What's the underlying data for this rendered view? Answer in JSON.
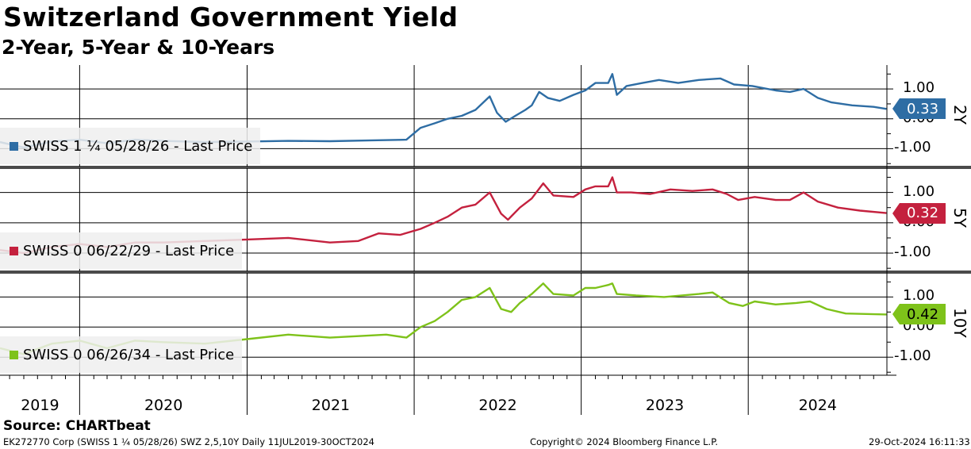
{
  "header": {
    "title": "Switzerland Government Yield",
    "subtitle": "2-Year, 5-Year & 10-Years"
  },
  "source": "Source: CHARTbeat",
  "footer": {
    "left": "EK272770 Corp (SWISS 1 ¼ 05/28/26) SWZ 2,5,10Y  Daily 11JUL2019-30OCT2024",
    "center": "Copyright© 2024 Bloomberg Finance L.P.",
    "right": "29-Oct-2024 16:11:33"
  },
  "chart_data": {
    "type": "line",
    "x_axis": {
      "start": "2019-07-11",
      "end": "2024-10-30",
      "year_labels": [
        "2019",
        "2020",
        "2021",
        "2022",
        "2023",
        "2024"
      ]
    },
    "panels": [
      {
        "side_label": "2Y",
        "legend": "SWISS 1 ¼ 05/28/26 - Last Price",
        "last_value": "0.33",
        "color": "#2e6da4",
        "ylim": [
          -1.6,
          1.8
        ],
        "yticks": [
          "1.00",
          "0.00",
          "-1.00"
        ],
        "points": [
          [
            "2019-07-11",
            -0.78
          ],
          [
            "2019-09-01",
            -0.96
          ],
          [
            "2019-11-01",
            -0.76
          ],
          [
            "2020-01-01",
            -0.7
          ],
          [
            "2020-03-01",
            -0.82
          ],
          [
            "2020-05-01",
            -0.7
          ],
          [
            "2020-07-01",
            -0.74
          ],
          [
            "2020-10-01",
            -0.78
          ],
          [
            "2021-01-01",
            -0.76
          ],
          [
            "2021-04-01",
            -0.74
          ],
          [
            "2021-07-01",
            -0.75
          ],
          [
            "2021-10-01",
            -0.72
          ],
          [
            "2021-12-15",
            -0.7
          ],
          [
            "2022-01-15",
            -0.3
          ],
          [
            "2022-02-15",
            -0.15
          ],
          [
            "2022-03-15",
            0.0
          ],
          [
            "2022-04-15",
            0.1
          ],
          [
            "2022-05-15",
            0.3
          ],
          [
            "2022-06-15",
            0.75
          ],
          [
            "2022-07-01",
            0.2
          ],
          [
            "2022-07-20",
            -0.1
          ],
          [
            "2022-08-10",
            0.1
          ],
          [
            "2022-09-01",
            0.3
          ],
          [
            "2022-09-15",
            0.45
          ],
          [
            "2022-10-01",
            0.9
          ],
          [
            "2022-10-20",
            0.7
          ],
          [
            "2022-11-15",
            0.6
          ],
          [
            "2022-12-15",
            0.8
          ],
          [
            "2023-01-10",
            0.95
          ],
          [
            "2023-02-01",
            1.2
          ],
          [
            "2023-03-01",
            1.2
          ],
          [
            "2023-03-10",
            1.5
          ],
          [
            "2023-03-20",
            0.8
          ],
          [
            "2023-04-10",
            1.1
          ],
          [
            "2023-05-15",
            1.2
          ],
          [
            "2023-06-20",
            1.3
          ],
          [
            "2023-08-01",
            1.2
          ],
          [
            "2023-09-15",
            1.3
          ],
          [
            "2023-11-01",
            1.35
          ],
          [
            "2023-12-01",
            1.15
          ],
          [
            "2024-01-10",
            1.1
          ],
          [
            "2024-03-01",
            0.95
          ],
          [
            "2024-04-01",
            0.9
          ],
          [
            "2024-05-01",
            1.0
          ],
          [
            "2024-06-01",
            0.7
          ],
          [
            "2024-07-01",
            0.55
          ],
          [
            "2024-08-15",
            0.45
          ],
          [
            "2024-10-01",
            0.4
          ],
          [
            "2024-10-29",
            0.33
          ]
        ]
      },
      {
        "side_label": "5Y",
        "legend": "SWISS 0 06/22/29 - Last Price",
        "last_value": "0.32",
        "color": "#c4213e",
        "ylim": [
          -1.6,
          1.8
        ],
        "yticks": [
          "1.00",
          "0.00",
          "-1.00"
        ],
        "points": [
          [
            "2019-07-11",
            -0.9
          ],
          [
            "2019-09-01",
            -1.0
          ],
          [
            "2019-11-01",
            -0.8
          ],
          [
            "2020-01-01",
            -0.7
          ],
          [
            "2020-03-01",
            -0.8
          ],
          [
            "2020-05-01",
            -0.65
          ],
          [
            "2020-07-01",
            -0.65
          ],
          [
            "2020-10-01",
            -0.6
          ],
          [
            "2021-01-01",
            -0.55
          ],
          [
            "2021-04-01",
            -0.5
          ],
          [
            "2021-07-01",
            -0.65
          ],
          [
            "2021-09-01",
            -0.6
          ],
          [
            "2021-10-15",
            -0.35
          ],
          [
            "2021-12-01",
            -0.4
          ],
          [
            "2022-01-15",
            -0.2
          ],
          [
            "2022-02-15",
            0.0
          ],
          [
            "2022-03-15",
            0.2
          ],
          [
            "2022-04-15",
            0.5
          ],
          [
            "2022-05-15",
            0.6
          ],
          [
            "2022-06-15",
            1.0
          ],
          [
            "2022-07-10",
            0.3
          ],
          [
            "2022-07-25",
            0.1
          ],
          [
            "2022-08-20",
            0.5
          ],
          [
            "2022-09-15",
            0.8
          ],
          [
            "2022-10-10",
            1.3
          ],
          [
            "2022-11-01",
            0.9
          ],
          [
            "2022-12-15",
            0.85
          ],
          [
            "2023-01-10",
            1.1
          ],
          [
            "2023-02-01",
            1.2
          ],
          [
            "2023-03-01",
            1.2
          ],
          [
            "2023-03-10",
            1.5
          ],
          [
            "2023-03-20",
            1.0
          ],
          [
            "2023-04-20",
            1.0
          ],
          [
            "2023-06-01",
            0.95
          ],
          [
            "2023-07-15",
            1.1
          ],
          [
            "2023-09-01",
            1.05
          ],
          [
            "2023-10-15",
            1.1
          ],
          [
            "2023-11-15",
            0.95
          ],
          [
            "2023-12-10",
            0.75
          ],
          [
            "2024-01-15",
            0.85
          ],
          [
            "2024-03-01",
            0.75
          ],
          [
            "2024-04-01",
            0.75
          ],
          [
            "2024-05-01",
            1.0
          ],
          [
            "2024-06-01",
            0.7
          ],
          [
            "2024-07-15",
            0.5
          ],
          [
            "2024-09-01",
            0.4
          ],
          [
            "2024-10-29",
            0.32
          ]
        ]
      },
      {
        "side_label": "10Y",
        "legend": "SWISS 0 06/26/34 - Last Price",
        "last_value": "0.42",
        "color": "#7ec21a",
        "ylim": [
          -1.6,
          1.8
        ],
        "yticks": [
          "1.00",
          "0.00",
          "-1.00"
        ],
        "points": [
          [
            "2019-07-11",
            -0.7
          ],
          [
            "2019-09-01",
            -0.9
          ],
          [
            "2019-11-01",
            -0.55
          ],
          [
            "2020-01-01",
            -0.45
          ],
          [
            "2020-03-01",
            -0.7
          ],
          [
            "2020-05-01",
            -0.45
          ],
          [
            "2020-07-01",
            -0.5
          ],
          [
            "2020-10-01",
            -0.55
          ],
          [
            "2021-01-01",
            -0.4
          ],
          [
            "2021-04-01",
            -0.25
          ],
          [
            "2021-07-01",
            -0.35
          ],
          [
            "2021-09-01",
            -0.3
          ],
          [
            "2021-11-01",
            -0.25
          ],
          [
            "2021-12-15",
            -0.35
          ],
          [
            "2022-01-15",
            0.0
          ],
          [
            "2022-02-15",
            0.2
          ],
          [
            "2022-03-15",
            0.5
          ],
          [
            "2022-04-15",
            0.9
          ],
          [
            "2022-05-15",
            1.0
          ],
          [
            "2022-06-15",
            1.3
          ],
          [
            "2022-07-10",
            0.6
          ],
          [
            "2022-08-01",
            0.5
          ],
          [
            "2022-08-20",
            0.8
          ],
          [
            "2022-09-15",
            1.1
          ],
          [
            "2022-10-10",
            1.45
          ],
          [
            "2022-11-01",
            1.1
          ],
          [
            "2022-12-15",
            1.05
          ],
          [
            "2023-01-10",
            1.3
          ],
          [
            "2023-02-01",
            1.3
          ],
          [
            "2023-03-01",
            1.4
          ],
          [
            "2023-03-10",
            1.45
          ],
          [
            "2023-03-20",
            1.1
          ],
          [
            "2023-05-01",
            1.05
          ],
          [
            "2023-07-01",
            1.0
          ],
          [
            "2023-09-15",
            1.1
          ],
          [
            "2023-10-15",
            1.15
          ],
          [
            "2023-11-20",
            0.8
          ],
          [
            "2023-12-20",
            0.7
          ],
          [
            "2024-01-15",
            0.85
          ],
          [
            "2024-03-01",
            0.75
          ],
          [
            "2024-04-15",
            0.8
          ],
          [
            "2024-05-15",
            0.85
          ],
          [
            "2024-06-20",
            0.6
          ],
          [
            "2024-08-01",
            0.45
          ],
          [
            "2024-10-29",
            0.42
          ]
        ]
      }
    ]
  }
}
